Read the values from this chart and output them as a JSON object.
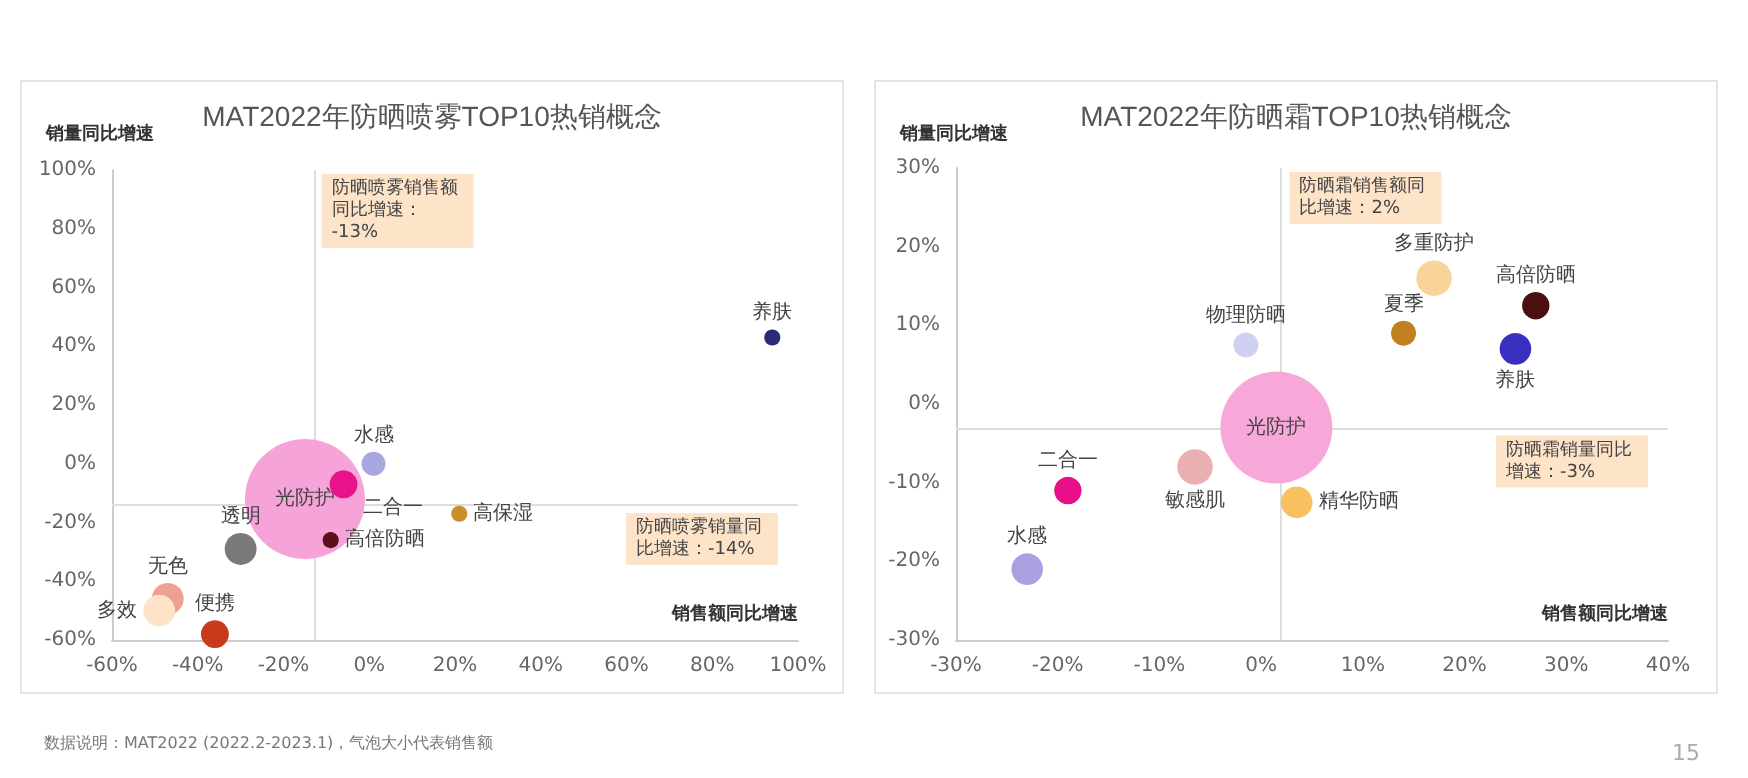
{
  "chart_data": [
    {
      "type": "bubble",
      "title": "MAT2022年防晒喷雾TOP10热销概念",
      "xlabel": "销售额同比增速",
      "ylabel": "销量同比增速",
      "xlim": [
        -60,
        100
      ],
      "xticks": [
        {
          "value": -60,
          "label": "-60%"
        },
        {
          "value": -40,
          "label": "-40%"
        },
        {
          "value": -20,
          "label": "-20%"
        },
        {
          "value": 0,
          "label": "0%"
        },
        {
          "value": 20,
          "label": "20%"
        },
        {
          "value": 40,
          "label": "40%"
        },
        {
          "value": 60,
          "label": "60%"
        },
        {
          "value": 80,
          "label": "80%"
        },
        {
          "value": 100,
          "label": "100%"
        }
      ],
      "ylim": [
        -60,
        100
      ],
      "yticks": [
        {
          "value": -60,
          "label": "-60%"
        },
        {
          "value": -40,
          "label": "-40%"
        },
        {
          "value": -20,
          "label": "-20%"
        },
        {
          "value": 0,
          "label": "0%"
        },
        {
          "value": 20,
          "label": "20%"
        },
        {
          "value": 40,
          "label": "40%"
        },
        {
          "value": 60,
          "label": "60%"
        },
        {
          "value": 80,
          "label": "80%"
        },
        {
          "value": 100,
          "label": "100%"
        }
      ],
      "series": [
        {
          "name": "养肤",
          "color": "#2b2a7a",
          "x": [
            94
          ],
          "values": [
            43
          ],
          "sizes": [
            0.018
          ]
        },
        {
          "name": "水感",
          "color": "#a8a8e0",
          "x": [
            1
          ],
          "values": [
            0
          ],
          "sizes": [
            0.04
          ]
        },
        {
          "name": "二合一",
          "color": "#e8138a",
          "x": [
            -6
          ],
          "values": [
            -7
          ],
          "sizes": [
            0.054
          ]
        },
        {
          "name": "光防护",
          "color": "#f5a3d8",
          "x": [
            -15
          ],
          "values": [
            -12
          ],
          "sizes": [
            1
          ]
        },
        {
          "name": "高倍防晒",
          "color": "#5a0f1a",
          "x": [
            -9
          ],
          "values": [
            -26
          ],
          "sizes": [
            0.018
          ]
        },
        {
          "name": "高保湿",
          "color": "#c8902a",
          "x": [
            21
          ],
          "values": [
            -17
          ],
          "sizes": [
            0.018
          ]
        },
        {
          "name": "透明",
          "color": "#7a7a7a",
          "x": [
            -30
          ],
          "values": [
            -29
          ],
          "sizes": [
            0.071
          ]
        },
        {
          "name": "无色",
          "color": "#f0a090",
          "x": [
            -47
          ],
          "values": [
            -46
          ],
          "sizes": [
            0.071
          ]
        },
        {
          "name": "多效",
          "color": "#fde3c8",
          "x": [
            -49
          ],
          "values": [
            -50
          ],
          "sizes": [
            0.071
          ]
        },
        {
          "name": "便携",
          "color": "#c83a1a",
          "x": [
            -36
          ],
          "values": [
            -58
          ],
          "sizes": [
            0.054
          ]
        }
      ],
      "ref_lines": [
        {
          "axis": "x",
          "value": -13,
          "label": "防晒喷雾销售额同比增速：-13%",
          "color": "#dddddd"
        },
        {
          "axis": "y",
          "value": -14,
          "label": "防晒喷雾销量同比增速：-14%",
          "color": "#dddddd"
        }
      ],
      "annotations": [
        "数据说明：MAT2022 (2022.2-2023.1)，气泡大小代表销售额",
        "15"
      ],
      "legend": false,
      "grid": false
    },
    {
      "type": "bubble",
      "title": "MAT2022年防晒霜TOP10热销概念",
      "xlabel": "销售额同比增速",
      "ylabel": "销量同比增速",
      "xlim": [
        -30,
        40
      ],
      "xticks": [
        {
          "value": -30,
          "label": "-30%"
        },
        {
          "value": -20,
          "label": "-20%"
        },
        {
          "value": -10,
          "label": "-10%"
        },
        {
          "value": 0,
          "label": "0%"
        },
        {
          "value": 10,
          "label": "10%"
        },
        {
          "value": 20,
          "label": "20%"
        },
        {
          "value": 30,
          "label": "30%"
        },
        {
          "value": 40,
          "label": "40%"
        }
      ],
      "ylim": [
        -30,
        30
      ],
      "yticks": [
        {
          "value": -30,
          "label": "-30%"
        },
        {
          "value": -20,
          "label": "-20%"
        },
        {
          "value": -10,
          "label": "-10%"
        },
        {
          "value": 0,
          "label": "0%"
        },
        {
          "value": 10,
          "label": "10%"
        },
        {
          "value": 20,
          "label": "20%"
        },
        {
          "value": 30,
          "label": "30%"
        }
      ],
      "series": [
        {
          "name": "多重防护",
          "color": "#f8d49a",
          "x": [
            17
          ],
          "values": [
            16
          ],
          "sizes": [
            0.1
          ]
        },
        {
          "name": "高倍防晒",
          "color": "#4a1010",
          "x": [
            27
          ],
          "values": [
            12.5
          ],
          "sizes": [
            0.06
          ]
        },
        {
          "name": "夏季",
          "color": "#c08020",
          "x": [
            14
          ],
          "values": [
            9
          ],
          "sizes": [
            0.05
          ]
        },
        {
          "name": "养肤",
          "color": "#3a30c0",
          "x": [
            25
          ],
          "values": [
            7
          ],
          "sizes": [
            0.08
          ]
        },
        {
          "name": "物理防晒",
          "color": "#d0d0f0",
          "x": [
            -1.5
          ],
          "values": [
            7.5
          ],
          "sizes": [
            0.05
          ]
        },
        {
          "name": "光防护",
          "color": "#f7a8d8",
          "x": [
            1.5
          ],
          "values": [
            -3
          ],
          "sizes": [
            1
          ]
        },
        {
          "name": "敏感肌",
          "color": "#e8b0b0",
          "x": [
            -6.5
          ],
          "values": [
            -8
          ],
          "sizes": [
            0.1
          ]
        },
        {
          "name": "二合一",
          "color": "#e8108a",
          "x": [
            -19
          ],
          "values": [
            -11
          ],
          "sizes": [
            0.06
          ]
        },
        {
          "name": "精华防晒",
          "color": "#f8c060",
          "x": [
            3.5
          ],
          "values": [
            -12.5
          ],
          "sizes": [
            0.08
          ]
        },
        {
          "name": "水感",
          "color": "#a8a0e0",
          "x": [
            -23
          ],
          "values": [
            -21
          ],
          "sizes": [
            0.08
          ]
        }
      ],
      "ref_lines": [
        {
          "axis": "x",
          "value": 2,
          "label": "防晒霜销售额同比增速：2%",
          "color": "#dddddd"
        },
        {
          "axis": "y",
          "value": -3,
          "label": "防晒霜销量同比增速：-3%",
          "color": "#dddddd"
        }
      ],
      "legend": false,
      "grid": false
    }
  ]
}
